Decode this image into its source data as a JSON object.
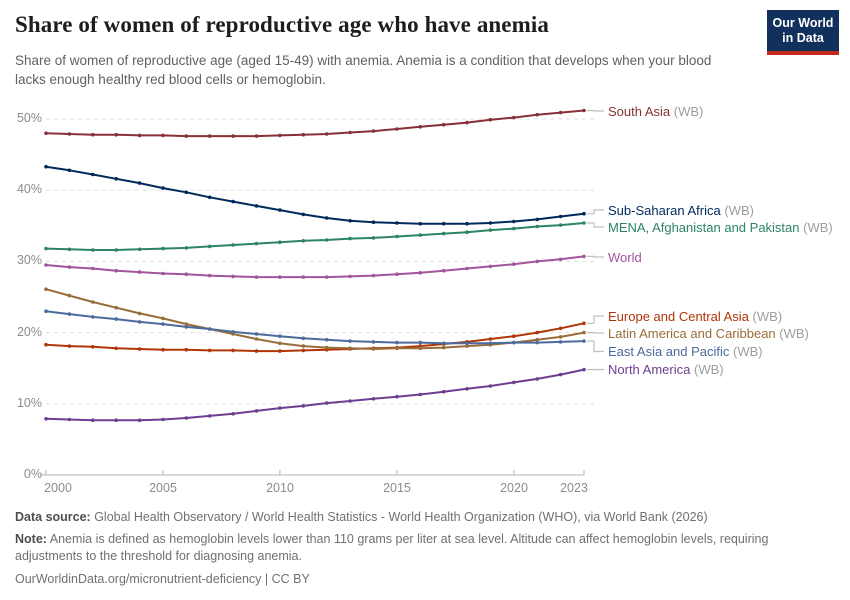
{
  "header": {
    "title": "Share of women of reproductive age who have anemia",
    "subtitle": "Share of women of reproductive age (aged 15-49) with anemia. Anemia is a condition that develops when your blood lacks enough healthy red blood cells or hemoglobin.",
    "logo": {
      "line1": "Our World",
      "line2": "in Data",
      "bg_color": "#12305c",
      "accent_color": "#c5281c"
    }
  },
  "chart_data": {
    "type": "line",
    "title": "Share of women of reproductive age who have anemia",
    "xlabel": "",
    "ylabel": "",
    "x": [
      2000,
      2001,
      2002,
      2003,
      2004,
      2005,
      2006,
      2007,
      2008,
      2009,
      2010,
      2011,
      2012,
      2013,
      2014,
      2015,
      2016,
      2017,
      2018,
      2019,
      2020,
      2021,
      2022,
      2023
    ],
    "x_ticks": [
      2000,
      2005,
      2010,
      2015,
      2020,
      2023
    ],
    "y_ticks": [
      0,
      10,
      20,
      30,
      40,
      50
    ],
    "y_tick_suffix": "%",
    "ylim": [
      0,
      52
    ],
    "grid": "horizontal-dashed",
    "legend_position": "right-of-line-ends",
    "series": [
      {
        "name": "South Asia",
        "suffix": "(WB)",
        "color": "#883039",
        "values": [
          48.0,
          47.9,
          47.8,
          47.8,
          47.7,
          47.7,
          47.6,
          47.6,
          47.6,
          47.6,
          47.7,
          47.8,
          47.9,
          48.1,
          48.3,
          48.6,
          48.9,
          49.2,
          49.5,
          49.9,
          50.2,
          50.6,
          50.9,
          51.2
        ]
      },
      {
        "name": "Sub-Saharan Africa",
        "suffix": "(WB)",
        "color": "#00295B",
        "values": [
          43.3,
          42.8,
          42.2,
          41.6,
          41.0,
          40.3,
          39.7,
          39.0,
          38.4,
          37.8,
          37.2,
          36.6,
          36.1,
          35.7,
          35.5,
          35.4,
          35.3,
          35.3,
          35.3,
          35.4,
          35.6,
          35.9,
          36.3,
          36.7
        ]
      },
      {
        "name": "MENA, Afghanistan and Pakistan",
        "suffix": "(WB)",
        "color": "#2C8465",
        "values": [
          31.8,
          31.7,
          31.6,
          31.6,
          31.7,
          31.8,
          31.9,
          32.1,
          32.3,
          32.5,
          32.7,
          32.9,
          33.0,
          33.2,
          33.3,
          33.5,
          33.7,
          33.9,
          34.1,
          34.4,
          34.6,
          34.9,
          35.1,
          35.4
        ]
      },
      {
        "name": "World",
        "suffix": "",
        "color": "#A2559C",
        "values": [
          29.5,
          29.2,
          29.0,
          28.7,
          28.5,
          28.3,
          28.2,
          28.0,
          27.9,
          27.8,
          27.8,
          27.8,
          27.8,
          27.9,
          28.0,
          28.2,
          28.4,
          28.7,
          29.0,
          29.3,
          29.6,
          30.0,
          30.3,
          30.7
        ]
      },
      {
        "name": "Europe and Central Asia",
        "suffix": "(WB)",
        "color": "#B13507",
        "values": [
          18.3,
          18.1,
          18.0,
          17.8,
          17.7,
          17.6,
          17.6,
          17.5,
          17.5,
          17.4,
          17.4,
          17.5,
          17.6,
          17.7,
          17.8,
          17.9,
          18.1,
          18.4,
          18.7,
          19.1,
          19.5,
          20.0,
          20.6,
          21.3
        ]
      },
      {
        "name": "Latin America and Caribbean",
        "suffix": "(WB)",
        "color": "#996D39",
        "values": [
          26.1,
          25.2,
          24.3,
          23.5,
          22.7,
          22.0,
          21.2,
          20.5,
          19.8,
          19.1,
          18.5,
          18.1,
          17.9,
          17.8,
          17.7,
          17.8,
          17.8,
          17.9,
          18.1,
          18.3,
          18.6,
          19.0,
          19.4,
          20.0
        ]
      },
      {
        "name": "East Asia and Pacific",
        "suffix": "(WB)",
        "color": "#4C6A9C",
        "values": [
          23.0,
          22.6,
          22.2,
          21.9,
          21.5,
          21.2,
          20.8,
          20.5,
          20.1,
          19.8,
          19.5,
          19.2,
          19.0,
          18.8,
          18.7,
          18.6,
          18.6,
          18.5,
          18.5,
          18.5,
          18.6,
          18.6,
          18.7,
          18.8
        ]
      },
      {
        "name": "North America",
        "suffix": "(WB)",
        "color": "#6D3E91",
        "values": [
          7.9,
          7.8,
          7.7,
          7.7,
          7.7,
          7.8,
          8.0,
          8.3,
          8.6,
          9.0,
          9.4,
          9.7,
          10.1,
          10.4,
          10.7,
          11.0,
          11.3,
          11.7,
          12.1,
          12.5,
          13.0,
          13.5,
          14.1,
          14.8
        ]
      }
    ]
  },
  "footer": {
    "source_label": "Data source:",
    "source_text": " Global Health Observatory / World Health Statistics - World Health Organization (WHO), via World Bank (2026)",
    "note_label": "Note:",
    "note_text": " Anemia is defined as hemoglobin levels lower than 110 grams per liter at sea level. Altitude can affect hemoglobin levels, requiring adjustments to the threshold for diagnosing anemia.",
    "url_text": "OurWorldinData.org/micronutrient-deficiency | CC BY"
  }
}
